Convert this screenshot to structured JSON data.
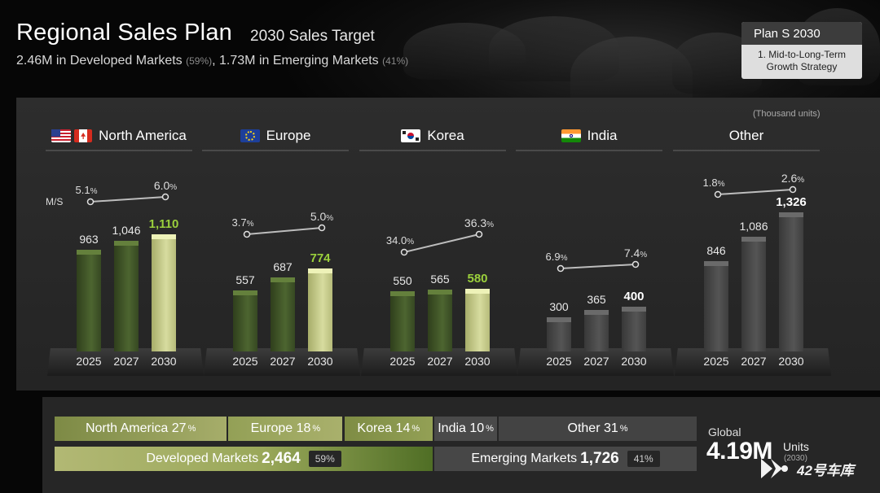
{
  "header": {
    "title": "Regional Sales Plan",
    "subtitle": "2030 Sales Target",
    "summary_developed": "2.46M in Developed Markets",
    "summary_developed_pct": "(59%)",
    "summary_sep": ",",
    "summary_emerging": "1.73M in Emerging Markets",
    "summary_emerging_pct": "(41%)"
  },
  "plan_box": {
    "title": "Plan S 2030",
    "line1": "1. Mid-to-Long-Term",
    "line2": "Growth Strategy"
  },
  "units": "(Thousand units)",
  "ms_label": "M/S",
  "chart_data": [
    {
      "type": "bar",
      "title": "North America",
      "categories": [
        "2025",
        "2027",
        "2030"
      ],
      "values": [
        963,
        1046,
        1110
      ],
      "value_labels": [
        "963",
        "1,046",
        "1,110"
      ],
      "market_share": [
        {
          "year": "2025",
          "value": 5.1,
          "num": "5.1",
          "unit": "%"
        },
        {
          "year": "2030",
          "value": 6.0,
          "num": "6.0",
          "unit": "%"
        }
      ],
      "highlight_color": "#9bd03c"
    },
    {
      "type": "bar",
      "title": "Europe",
      "categories": [
        "2025",
        "2027",
        "2030"
      ],
      "values": [
        557,
        687,
        774
      ],
      "value_labels": [
        "557",
        "687",
        "774"
      ],
      "market_share": [
        {
          "year": "2025",
          "value": 3.7,
          "num": "3.7",
          "unit": "%"
        },
        {
          "year": "2030",
          "value": 5.0,
          "num": "5.0",
          "unit": "%"
        }
      ],
      "highlight_color": "#9bd03c"
    },
    {
      "type": "bar",
      "title": "Korea",
      "categories": [
        "2025",
        "2027",
        "2030"
      ],
      "values": [
        550,
        565,
        580
      ],
      "value_labels": [
        "550",
        "565",
        "580"
      ],
      "market_share": [
        {
          "year": "2025",
          "value": 34.0,
          "num": "34.0",
          "unit": "%"
        },
        {
          "year": "2030",
          "value": 36.3,
          "num": "36.3",
          "unit": "%"
        }
      ],
      "highlight_color": "#9bd03c"
    },
    {
      "type": "bar",
      "title": "India",
      "categories": [
        "2025",
        "2027",
        "2030"
      ],
      "values": [
        300,
        365,
        400
      ],
      "value_labels": [
        "300",
        "365",
        "400"
      ],
      "market_share": [
        {
          "year": "2025",
          "value": 6.9,
          "num": "6.9",
          "unit": "%"
        },
        {
          "year": "2030",
          "value": 7.4,
          "num": "7.4",
          "unit": "%"
        }
      ],
      "highlight_color": "#ffffff"
    },
    {
      "type": "bar",
      "title": "Other",
      "categories": [
        "2025",
        "2027",
        "2030"
      ],
      "values": [
        846,
        1086,
        1326
      ],
      "value_labels": [
        "846",
        "1,086",
        "1,326"
      ],
      "market_share": [
        {
          "year": "2025",
          "value": 1.8,
          "num": "1.8",
          "unit": "%"
        },
        {
          "year": "2030",
          "value": 2.6,
          "num": "2.6",
          "unit": "%"
        }
      ],
      "highlight_color": "#ffffff"
    }
  ],
  "region_flags": [
    "us-ca-flags-icon",
    "eu-flag-icon",
    "korea-flag-icon",
    "india-flag-icon",
    ""
  ],
  "share_bar": {
    "segments": [
      {
        "label": "North America",
        "num": "27",
        "unit": "%",
        "share": 27
      },
      {
        "label": "Europe",
        "num": "18",
        "unit": "%",
        "share": 18
      },
      {
        "label": "Korea",
        "num": "14",
        "unit": "%",
        "share": 14
      },
      {
        "label": "India",
        "num": "10",
        "unit": "%",
        "share": 10
      },
      {
        "label": "Other",
        "num": "31",
        "unit": "%",
        "share": 31
      }
    ],
    "developed": {
      "label": "Developed Markets",
      "value": "2,464",
      "pct": "59%",
      "share": 59
    },
    "emerging": {
      "label": "Emerging Markets",
      "value": "1,726",
      "pct": "41%",
      "share": 41
    }
  },
  "global": {
    "label": "Global",
    "value": "4.19M",
    "units": "Units",
    "year": "(2030)"
  },
  "watermark": "42号车库",
  "colors": {
    "green_dark": "#3e5226",
    "green_light": "#c9cf8e",
    "gray_bar": "#4a4a4a",
    "accent_green": "#9bd03c"
  }
}
